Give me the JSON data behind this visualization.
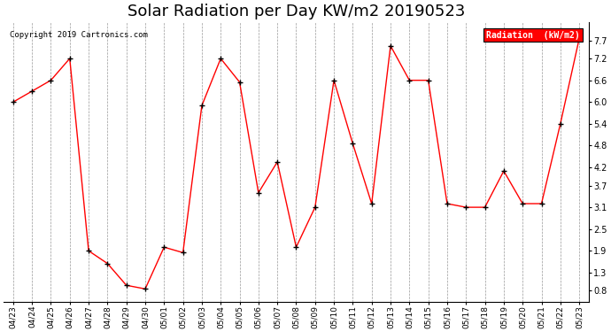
{
  "title": "Solar Radiation per Day KW/m2 20190523",
  "copyright": "Copyright 2019 Cartronics.com",
  "legend_label": "Radiation  (kW/m2)",
  "x_labels": [
    "04/23",
    "04/24",
    "04/25",
    "04/26",
    "04/27",
    "04/28",
    "04/29",
    "04/30",
    "05/01",
    "05/02",
    "05/03",
    "05/04",
    "05/05",
    "05/06",
    "05/07",
    "05/08",
    "05/09",
    "05/10",
    "05/11",
    "05/12",
    "05/13",
    "05/14",
    "05/15",
    "05/16",
    "05/17",
    "05/18",
    "05/19",
    "05/20",
    "05/21",
    "05/22",
    "05/23"
  ],
  "y_values": [
    6.0,
    6.3,
    6.6,
    7.2,
    1.9,
    1.55,
    0.95,
    0.85,
    2.0,
    1.85,
    5.9,
    7.2,
    6.55,
    3.5,
    4.35,
    2.0,
    3.1,
    6.6,
    4.85,
    3.2,
    7.55,
    6.6,
    6.6,
    3.2,
    3.1,
    3.1,
    4.1,
    3.2,
    3.2,
    5.4,
    7.75
  ],
  "line_color": "#ff0000",
  "marker_color": "#000000",
  "bg_color": "#ffffff",
  "grid_color": "#999999",
  "title_fontsize": 13,
  "ylabel_right_values": [
    0.8,
    1.3,
    1.9,
    2.5,
    3.1,
    3.7,
    4.2,
    4.8,
    5.4,
    6.0,
    6.6,
    7.2,
    7.7
  ],
  "ylim": [
    0.5,
    8.2
  ]
}
